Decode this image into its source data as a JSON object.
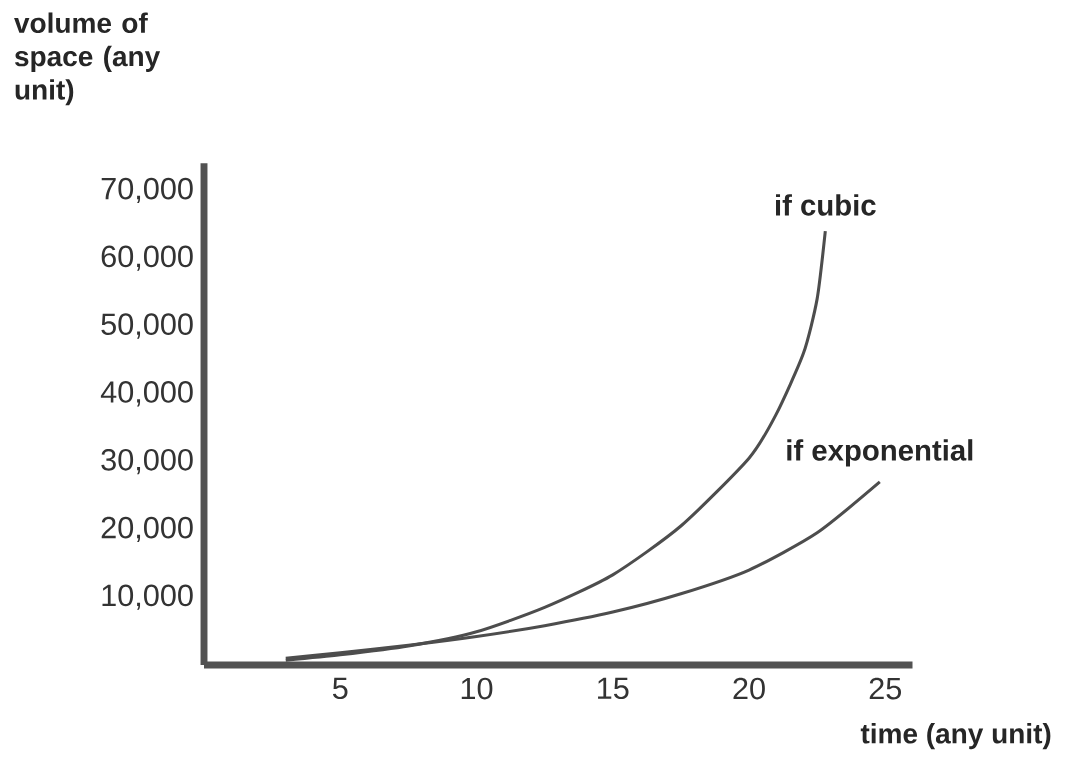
{
  "chart_data": {
    "type": "line",
    "xlabel": "time (any unit)",
    "ylabel": "volume of space (any unit)",
    "xlim": [
      0,
      26
    ],
    "ylim": [
      0,
      74000
    ],
    "xticks": [
      5,
      10,
      15,
      20,
      25
    ],
    "yticks": [
      {
        "value": 10000,
        "label": "10,000"
      },
      {
        "value": 20000,
        "label": "20,000"
      },
      {
        "value": 30000,
        "label": "30,000"
      },
      {
        "value": 40000,
        "label": "40,000"
      },
      {
        "value": 50000,
        "label": "50,000"
      },
      {
        "value": 60000,
        "label": "60,000"
      },
      {
        "value": 70000,
        "label": "70,000"
      }
    ],
    "marker": "none",
    "series": [
      {
        "name": "if cubic",
        "color": "#4d4d4d",
        "x": [
          3,
          5,
          7.5,
          10,
          12.5,
          15,
          17.5,
          20,
          21,
          22,
          22.5,
          22.8
        ],
        "values": [
          700,
          1500,
          2800,
          4900,
          8500,
          13300,
          20500,
          30500,
          37000,
          46000,
          54000,
          64000
        ]
      },
      {
        "name": "if exponential",
        "color": "#4d4d4d",
        "x": [
          3,
          5,
          7.5,
          10,
          12.5,
          15,
          17.5,
          20,
          22.5,
          24.8
        ],
        "values": [
          1000,
          1800,
          2900,
          4200,
          5800,
          7800,
          10500,
          14000,
          19500,
          27000
        ]
      }
    ]
  }
}
